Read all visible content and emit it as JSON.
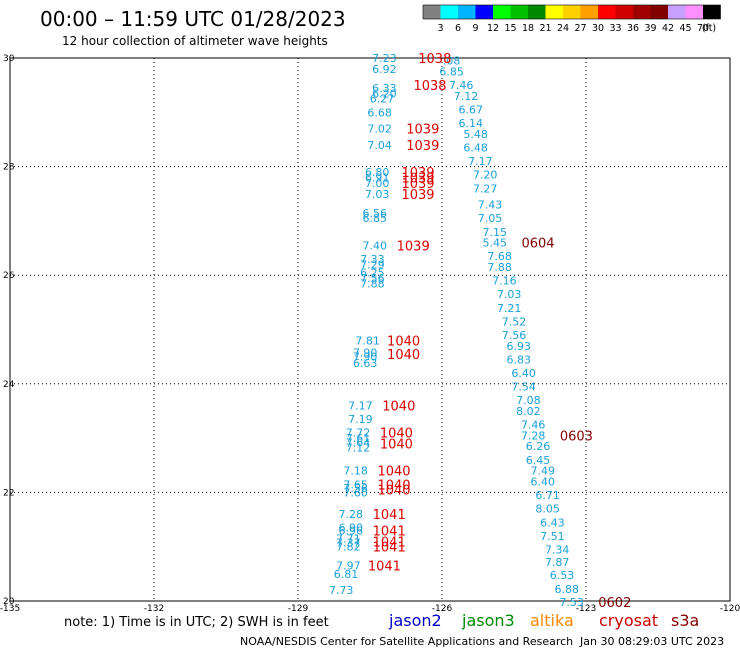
{
  "header": {
    "title": "00:00 – 11:59 UTC 01/28/2023",
    "subtitle": "12 hour collection of altimeter wave heights"
  },
  "scale": {
    "labels": [
      "3",
      "6",
      "9",
      "12",
      "15",
      "18",
      "21",
      "24",
      "27",
      "30",
      "33",
      "36",
      "39",
      "42",
      "45",
      "70",
      "(ft)"
    ],
    "colors": [
      "#808080",
      "#00ffff",
      "#00b4ff",
      "#0000ff",
      "#00ff00",
      "#00c000",
      "#008800",
      "#ffff00",
      "#ffd000",
      "#ffa000",
      "#ff0000",
      "#d00000",
      "#a00000",
      "#800000",
      "#c8a0ff",
      "#ff90ff",
      "#000000"
    ]
  },
  "footer": {
    "note": "note:  1) Time is in UTC;  2) SWH is in feet",
    "credit": "NOAA/NESDIS Center for Satellite Applications and Research",
    "timestamp": "Jan 30 08:29:03 UTC 2023"
  },
  "legend": [
    {
      "name": "jason2",
      "color": "#0000cc"
    },
    {
      "name": "jason3",
      "color": "#008800"
    },
    {
      "name": "altika",
      "color": "#ff8800"
    },
    {
      "name": "cryosat",
      "color": "#cc0000"
    },
    {
      "name": "s3a",
      "color": "#880000"
    }
  ],
  "chart_data": {
    "type": "scatter",
    "xlim": [
      -135,
      -120
    ],
    "ylim": [
      20,
      30
    ],
    "xticks": [
      -135,
      -132,
      -129,
      -126,
      -123,
      -120
    ],
    "xtick_labels": [
      "-135",
      "-132",
      "-129",
      "-126",
      "-123",
      "-120"
    ],
    "yticks": [
      20,
      22,
      24,
      26,
      28,
      30
    ],
    "ytick_labels": [
      "20",
      "22",
      "24",
      "26",
      "28",
      "30"
    ],
    "grid": true,
    "colors": {
      "swh": "#1a9fd8",
      "time_cryosat": "#dd0000",
      "time_s3a": "#800000"
    },
    "wave_labels": [
      {
        "x": -127.2,
        "y": 30.0,
        "text": "7.23"
      },
      {
        "x": -127.2,
        "y": 29.8,
        "text": "6.92"
      },
      {
        "x": -125.8,
        "y": 29.95,
        "text": ".08"
      },
      {
        "x": -125.8,
        "y": 29.75,
        "text": "6.85"
      },
      {
        "x": -125.6,
        "y": 29.5,
        "text": "7.46"
      },
      {
        "x": -127.2,
        "y": 29.45,
        "text": "6.33"
      },
      {
        "x": -127.2,
        "y": 29.35,
        "text": "6.20"
      },
      {
        "x": -127.25,
        "y": 29.25,
        "text": "6.27"
      },
      {
        "x": -125.5,
        "y": 29.3,
        "text": "7.12"
      },
      {
        "x": -125.4,
        "y": 29.05,
        "text": "6.67"
      },
      {
        "x": -127.3,
        "y": 29.0,
        "text": "6.68"
      },
      {
        "x": -125.4,
        "y": 28.8,
        "text": "6.14"
      },
      {
        "x": -127.3,
        "y": 28.7,
        "text": "7.02"
      },
      {
        "x": -125.3,
        "y": 28.6,
        "text": "5.48"
      },
      {
        "x": -127.3,
        "y": 28.4,
        "text": "7.04"
      },
      {
        "x": -125.3,
        "y": 28.35,
        "text": "6.48"
      },
      {
        "x": -125.2,
        "y": 28.1,
        "text": "7.17"
      },
      {
        "x": -127.35,
        "y": 27.9,
        "text": "6.80"
      },
      {
        "x": -127.35,
        "y": 27.8,
        "text": "6.91"
      },
      {
        "x": -127.35,
        "y": 27.7,
        "text": "7.00"
      },
      {
        "x": -125.1,
        "y": 27.85,
        "text": "7.20"
      },
      {
        "x": -125.1,
        "y": 27.6,
        "text": "7.27"
      },
      {
        "x": -127.35,
        "y": 27.5,
        "text": "7.03"
      },
      {
        "x": -125.0,
        "y": 27.3,
        "text": "7.43"
      },
      {
        "x": -127.4,
        "y": 27.15,
        "text": "6.56"
      },
      {
        "x": -127.4,
        "y": 27.05,
        "text": "6.85"
      },
      {
        "x": -125.0,
        "y": 27.05,
        "text": "7.05"
      },
      {
        "x": -124.9,
        "y": 26.8,
        "text": "7.15"
      },
      {
        "x": -124.9,
        "y": 26.6,
        "text": "5.45"
      },
      {
        "x": -127.4,
        "y": 26.55,
        "text": "7.40"
      },
      {
        "x": -124.8,
        "y": 26.35,
        "text": "7.68"
      },
      {
        "x": -127.45,
        "y": 26.3,
        "text": "7.33"
      },
      {
        "x": -127.45,
        "y": 26.2,
        "text": "7.29"
      },
      {
        "x": -124.8,
        "y": 26.15,
        "text": "7.88"
      },
      {
        "x": -127.45,
        "y": 26.05,
        "text": "6.25"
      },
      {
        "x": -127.45,
        "y": 25.95,
        "text": "7.56"
      },
      {
        "x": -127.45,
        "y": 25.85,
        "text": "7.88"
      },
      {
        "x": -124.7,
        "y": 25.9,
        "text": "7.16"
      },
      {
        "x": -124.6,
        "y": 25.65,
        "text": "7.03"
      },
      {
        "x": -124.6,
        "y": 25.4,
        "text": "7.21"
      },
      {
        "x": -124.5,
        "y": 25.15,
        "text": "7.52"
      },
      {
        "x": -124.5,
        "y": 24.9,
        "text": "7.56"
      },
      {
        "x": -127.55,
        "y": 24.8,
        "text": "7.81"
      },
      {
        "x": -124.4,
        "y": 24.7,
        "text": "6.93"
      },
      {
        "x": -127.6,
        "y": 24.58,
        "text": "7.90"
      },
      {
        "x": -127.6,
        "y": 24.5,
        "text": "7.90"
      },
      {
        "x": -127.6,
        "y": 24.38,
        "text": "6.63"
      },
      {
        "x": -124.4,
        "y": 24.45,
        "text": "6.83"
      },
      {
        "x": -124.3,
        "y": 24.2,
        "text": "6.40"
      },
      {
        "x": -124.3,
        "y": 23.95,
        "text": "7.54"
      },
      {
        "x": -124.2,
        "y": 23.7,
        "text": "7.08"
      },
      {
        "x": -127.7,
        "y": 23.6,
        "text": "7.17"
      },
      {
        "x": -124.2,
        "y": 23.5,
        "text": "8.02"
      },
      {
        "x": -127.7,
        "y": 23.35,
        "text": "7.19"
      },
      {
        "x": -124.1,
        "y": 23.25,
        "text": "7.46"
      },
      {
        "x": -127.75,
        "y": 23.1,
        "text": "7.72"
      },
      {
        "x": -124.1,
        "y": 23.05,
        "text": "7.28"
      },
      {
        "x": -127.75,
        "y": 23.0,
        "text": "7.61"
      },
      {
        "x": -127.75,
        "y": 22.92,
        "text": "7.64"
      },
      {
        "x": -127.75,
        "y": 22.83,
        "text": "7.12"
      },
      {
        "x": -124.0,
        "y": 22.85,
        "text": "6.26"
      },
      {
        "x": -124.0,
        "y": 22.6,
        "text": "6.45"
      },
      {
        "x": -127.8,
        "y": 22.4,
        "text": "7.18"
      },
      {
        "x": -123.9,
        "y": 22.4,
        "text": "7.49"
      },
      {
        "x": -127.8,
        "y": 22.15,
        "text": "7.65"
      },
      {
        "x": -127.8,
        "y": 22.08,
        "text": "7.56"
      },
      {
        "x": -127.8,
        "y": 22.0,
        "text": "7.60"
      },
      {
        "x": -123.9,
        "y": 22.2,
        "text": "6.40"
      },
      {
        "x": -123.8,
        "y": 21.95,
        "text": "6.71"
      },
      {
        "x": -127.9,
        "y": 21.6,
        "text": "7.28"
      },
      {
        "x": -123.8,
        "y": 21.7,
        "text": "8.05"
      },
      {
        "x": -127.9,
        "y": 21.35,
        "text": "6.90"
      },
      {
        "x": -127.9,
        "y": 21.3,
        "text": "6.96"
      },
      {
        "x": -123.7,
        "y": 21.45,
        "text": "6.43"
      },
      {
        "x": -127.95,
        "y": 21.15,
        "text": "7.71"
      },
      {
        "x": -127.95,
        "y": 21.08,
        "text": "7.37"
      },
      {
        "x": -127.95,
        "y": 21.0,
        "text": "7.82"
      },
      {
        "x": -123.7,
        "y": 21.2,
        "text": "7.51"
      },
      {
        "x": -123.6,
        "y": 20.95,
        "text": "7.34"
      },
      {
        "x": -127.95,
        "y": 20.65,
        "text": "7.97"
      },
      {
        "x": -123.6,
        "y": 20.72,
        "text": "7.87"
      },
      {
        "x": -128.0,
        "y": 20.5,
        "text": "6.81"
      },
      {
        "x": -123.5,
        "y": 20.48,
        "text": "6.53"
      },
      {
        "x": -123.4,
        "y": 20.22,
        "text": "6.88"
      },
      {
        "x": -128.1,
        "y": 20.2,
        "text": "7.73"
      },
      {
        "x": -123.3,
        "y": 19.98,
        "text": "7.53"
      }
    ],
    "time_labels": [
      {
        "x": -126.15,
        "y": 30.0,
        "text": "1038",
        "sat": "cryosat"
      },
      {
        "x": -126.25,
        "y": 29.5,
        "text": "1038",
        "sat": "cryosat"
      },
      {
        "x": -126.4,
        "y": 28.7,
        "text": "1039",
        "sat": "cryosat"
      },
      {
        "x": -126.4,
        "y": 28.4,
        "text": "1039",
        "sat": "cryosat"
      },
      {
        "x": -126.5,
        "y": 27.9,
        "text": "1039",
        "sat": "cryosat"
      },
      {
        "x": -126.5,
        "y": 27.8,
        "text": "1039",
        "sat": "cryosat"
      },
      {
        "x": -126.5,
        "y": 27.7,
        "text": "1039",
        "sat": "cryosat"
      },
      {
        "x": -126.5,
        "y": 27.5,
        "text": "1039",
        "sat": "cryosat"
      },
      {
        "x": -126.6,
        "y": 26.55,
        "text": "1039",
        "sat": "cryosat"
      },
      {
        "x": -126.8,
        "y": 24.8,
        "text": "1040",
        "sat": "cryosat"
      },
      {
        "x": -126.8,
        "y": 24.55,
        "text": "1040",
        "sat": "cryosat"
      },
      {
        "x": -126.9,
        "y": 23.6,
        "text": "1040",
        "sat": "cryosat"
      },
      {
        "x": -126.95,
        "y": 23.1,
        "text": "1040",
        "sat": "cryosat"
      },
      {
        "x": -126.95,
        "y": 22.9,
        "text": "1040",
        "sat": "cryosat"
      },
      {
        "x": -127.0,
        "y": 22.4,
        "text": "1040",
        "sat": "cryosat"
      },
      {
        "x": -127.0,
        "y": 22.15,
        "text": "1040",
        "sat": "cryosat"
      },
      {
        "x": -127.0,
        "y": 22.05,
        "text": "1040",
        "sat": "cryosat"
      },
      {
        "x": -127.1,
        "y": 21.6,
        "text": "1041",
        "sat": "cryosat"
      },
      {
        "x": -127.1,
        "y": 21.3,
        "text": "1041",
        "sat": "cryosat"
      },
      {
        "x": -127.1,
        "y": 21.1,
        "text": "1041",
        "sat": "cryosat"
      },
      {
        "x": -127.1,
        "y": 21.0,
        "text": "1041",
        "sat": "cryosat"
      },
      {
        "x": -127.2,
        "y": 20.65,
        "text": "1041",
        "sat": "cryosat"
      },
      {
        "x": -124.0,
        "y": 26.6,
        "text": "0604",
        "sat": "s3a"
      },
      {
        "x": -123.2,
        "y": 23.05,
        "text": "0603",
        "sat": "s3a"
      },
      {
        "x": -122.4,
        "y": 19.98,
        "text": "0602",
        "sat": "s3a"
      }
    ]
  }
}
